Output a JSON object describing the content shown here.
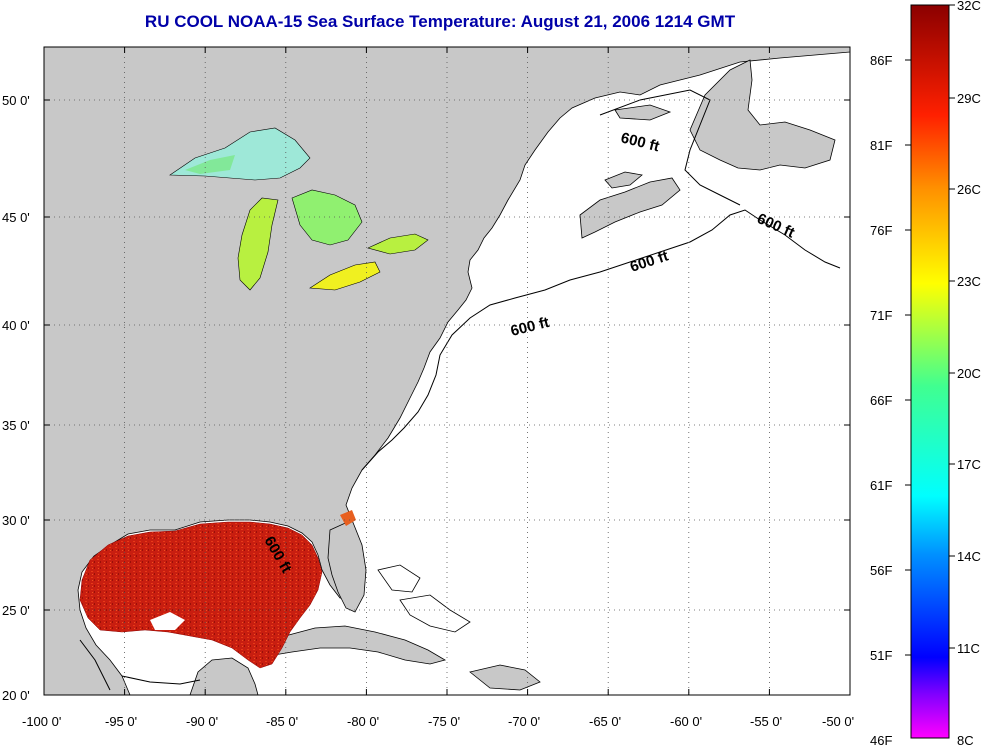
{
  "title": "RU COOL  NOAA-15  Sea Surface Temperature:  August 21, 2006 1214 GMT",
  "lat_ticks": [
    "50 0'",
    "45 0'",
    "40 0'",
    "35 0'",
    "30 0'",
    "25 0'",
    "20 0'"
  ],
  "lon_ticks": [
    "-100 0'",
    "-95 0'",
    "-90 0'",
    "-85 0'",
    "-80 0'",
    "-75 0'",
    "-70 0'",
    "-65 0'",
    "-60 0'",
    "-55 0'",
    "-50 0'"
  ],
  "colorbar": {
    "f_labels": [
      "86F",
      "81F",
      "76F",
      "71F",
      "66F",
      "61F",
      "56F",
      "51F",
      "46F"
    ],
    "c_labels": [
      "32C",
      "29C",
      "26C",
      "23C",
      "20C",
      "17C",
      "14C",
      "11C",
      "8C"
    ]
  },
  "contour_label": "600 ft",
  "colors": {
    "land": "#c8c8c8",
    "ocean": "#ffffff",
    "title": "#0000a8",
    "warm_sst": "#cc1a10"
  }
}
